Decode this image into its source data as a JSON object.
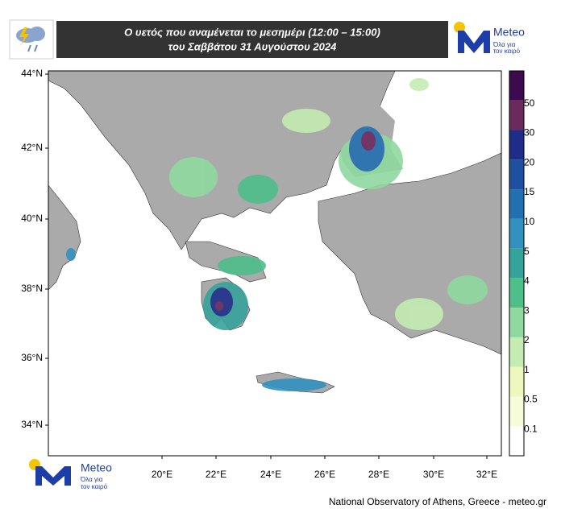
{
  "header": {
    "title_line1": "Ο υετός που αναμένεται το μεσημέρι (12:00 – 15:00)",
    "title_line2": "του Σαββάτου 31 Αυγούστου 2024"
  },
  "logo": {
    "name": "Meteo",
    "tagline_line1": "Όλα για",
    "tagline_line2": "τον καιρό"
  },
  "map": {
    "lat_labels": [
      "44°N",
      "42°N",
      "40°N",
      "38°N",
      "36°N",
      "34°N"
    ],
    "lon_labels": [
      "20°E",
      "22°E",
      "24°E",
      "26°E",
      "28°E",
      "30°E",
      "32°E"
    ]
  },
  "legend": {
    "labels": [
      "50",
      "30",
      "20",
      "15",
      "10",
      "5",
      "4",
      "3",
      "2",
      "1",
      "0.5",
      "0.1"
    ]
  },
  "footer": "National Observatory of Athens, Greece - meteo.gr"
}
